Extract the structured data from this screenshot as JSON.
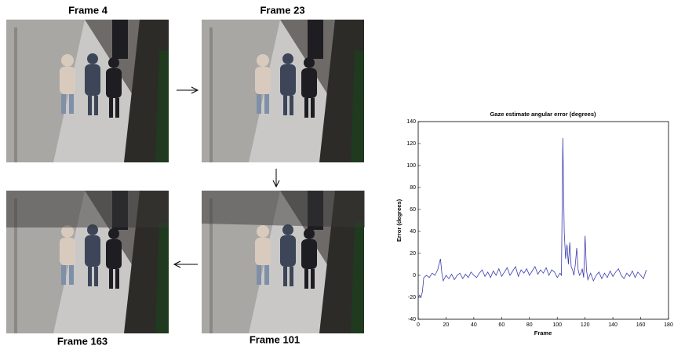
{
  "frames": [
    {
      "label": "Frame 4"
    },
    {
      "label": "Frame 23"
    },
    {
      "label": "Frame 163"
    },
    {
      "label": "Frame 101"
    }
  ],
  "chart_data": {
    "type": "line",
    "title": "Gaze estimate angular error (degrees)",
    "x_label": "Frame",
    "y_label": "Error (degrees)",
    "xlim": [
      0,
      180
    ],
    "xticks": [
      0,
      20,
      40,
      60,
      80,
      100,
      120,
      140,
      160,
      180
    ],
    "ylim": [
      -40,
      140
    ],
    "yticks": [
      -40,
      -20,
      0,
      20,
      40,
      60,
      80,
      100,
      120,
      140
    ],
    "x": [
      0,
      1,
      2,
      3,
      4,
      6,
      8,
      10,
      12,
      14,
      16,
      17,
      18,
      20,
      22,
      24,
      26,
      28,
      30,
      32,
      34,
      36,
      38,
      40,
      42,
      44,
      46,
      48,
      50,
      52,
      54,
      56,
      58,
      60,
      62,
      64,
      66,
      68,
      70,
      72,
      74,
      76,
      78,
      80,
      82,
      84,
      86,
      88,
      90,
      92,
      94,
      96,
      98,
      100,
      102,
      103,
      104,
      105,
      106,
      107,
      108,
      109,
      110,
      111,
      112,
      113,
      114,
      115,
      116,
      117,
      118,
      119,
      120,
      121,
      122,
      124,
      126,
      128,
      130,
      132,
      134,
      136,
      138,
      140,
      142,
      144,
      146,
      148,
      150,
      152,
      154,
      156,
      158,
      160,
      162,
      164
    ],
    "series": [
      {
        "color": "#3a3ab0",
        "values": [
          -20,
          -18,
          -20,
          -15,
          -2,
          0,
          -2,
          2,
          0,
          5,
          15,
          2,
          -5,
          0,
          -3,
          1,
          -4,
          0,
          2,
          -3,
          1,
          -2,
          3,
          0,
          -2,
          2,
          5,
          -1,
          3,
          -2,
          4,
          0,
          6,
          -1,
          3,
          7,
          0,
          4,
          8,
          -1,
          5,
          2,
          6,
          0,
          4,
          8,
          1,
          5,
          2,
          7,
          0,
          5,
          3,
          -2,
          2,
          0,
          125,
          40,
          15,
          28,
          10,
          30,
          8,
          5,
          0,
          10,
          25,
          5,
          0,
          2,
          6,
          -2,
          36,
          5,
          -4,
          2,
          -5,
          0,
          3,
          -3,
          2,
          -2,
          4,
          -1,
          3,
          6,
          0,
          -3,
          2,
          -1,
          4,
          -2,
          3,
          0,
          -3,
          5
        ]
      }
    ]
  }
}
